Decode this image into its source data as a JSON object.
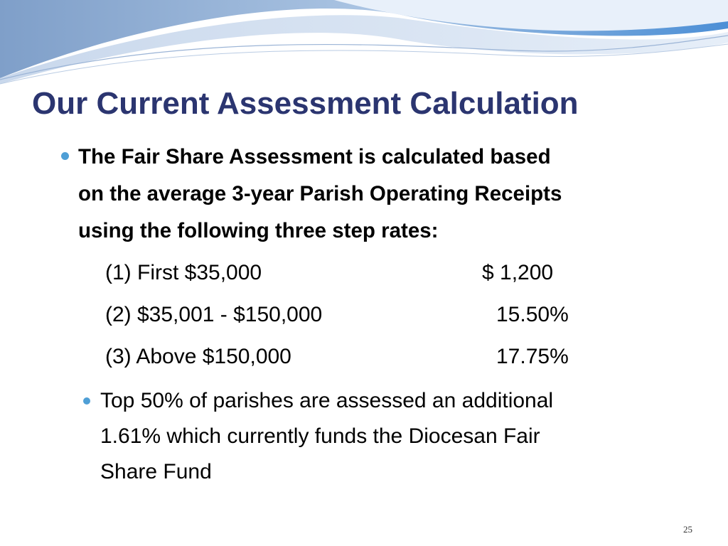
{
  "slide": {
    "title": "Our Current Assessment Calculation",
    "bullets": [
      {
        "lines": [
          "The Fair Share Assessment is calculated based",
          "on the average 3-year Parish Operating Receipts",
          "using the following three step rates:"
        ],
        "rates": [
          {
            "label": "(1) First $35,000",
            "value": "$ 1,200"
          },
          {
            "label": "(2) $35,001 - $150,000",
            "value": "15.50%"
          },
          {
            "label": "(3) Above $150,000",
            "value": "17.75%"
          }
        ]
      },
      {
        "lines": [
          "Top 50% of parishes are assessed an additional",
          "1.61% which currently funds the Diocesan Fair",
          "Share Fund"
        ]
      }
    ],
    "page_number": "25"
  }
}
